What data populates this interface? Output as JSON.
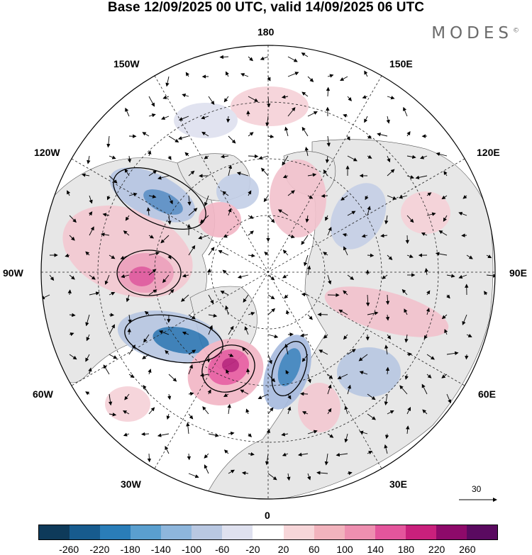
{
  "title": "Base 12/09/2025 00 UTC, valid 14/09/2025 06 UTC",
  "brand": "MODES",
  "brand_mark": "©",
  "longitude_labels": {
    "north": "180",
    "n150w": "150W",
    "n150e": "150E",
    "w120": "120W",
    "e120": "120E",
    "w90": "90W",
    "e90": "90E",
    "w60": "60W",
    "e60": "60E",
    "s30w": "30W",
    "s30e": "30E",
    "south": "0"
  },
  "reference_vector": {
    "value": "30"
  },
  "colorbar": {
    "colors": [
      "#0e3a5a",
      "#175b8e",
      "#2a7db8",
      "#5a9fcf",
      "#8eb6dc",
      "#b9c8e2",
      "#dfe1ef",
      "#ffffff",
      "#f7d6d9",
      "#f2b3bd",
      "#ee8fb0",
      "#e4559c",
      "#c9207c",
      "#8e0a6a",
      "#5a0a60"
    ],
    "tick_labels": [
      "-260",
      "-220",
      "-180",
      "-140",
      "-100",
      "-60",
      "-20",
      "20",
      "60",
      "100",
      "140",
      "180",
      "220",
      "260"
    ]
  },
  "colors": {
    "land": "#e8e8e8",
    "ocean": "#ffffff",
    "positive": "#e9a6b8",
    "negative": "#8fb0d8"
  }
}
